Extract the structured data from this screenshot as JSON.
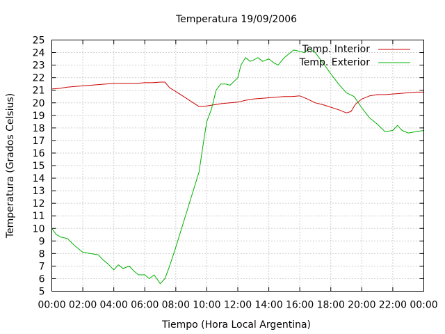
{
  "chart_data": {
    "type": "line",
    "title": "Temperatura 19/09/2006",
    "xlabel": "Tiempo (Hora Local Argentina)",
    "ylabel": "Temperatura (Grados Celsius)",
    "xlim": [
      0,
      24
    ],
    "ylim": [
      5,
      25
    ],
    "x_ticks": [
      {
        "value": 0,
        "label": "00:00"
      },
      {
        "value": 2,
        "label": "02:00"
      },
      {
        "value": 4,
        "label": "04:00"
      },
      {
        "value": 6,
        "label": "06:00"
      },
      {
        "value": 8,
        "label": "08:00"
      },
      {
        "value": 10,
        "label": "10:00"
      },
      {
        "value": 12,
        "label": "12:00"
      },
      {
        "value": 14,
        "label": "14:00"
      },
      {
        "value": 16,
        "label": "16:00"
      },
      {
        "value": 18,
        "label": "18:00"
      },
      {
        "value": 20,
        "label": "20:00"
      },
      {
        "value": 22,
        "label": "22:00"
      },
      {
        "value": 24,
        "label": "00:00"
      }
    ],
    "y_ticks": [
      5,
      6,
      7,
      8,
      9,
      10,
      11,
      12,
      13,
      14,
      15,
      16,
      17,
      18,
      19,
      20,
      21,
      22,
      23,
      24,
      25
    ],
    "grid": true,
    "legend_position": "top-right",
    "series": [
      {
        "name": "Temp. Interior",
        "color": "#cc0000",
        "x": [
          0.0,
          0.5,
          1.0,
          1.5,
          2.0,
          2.5,
          3.0,
          3.5,
          4.0,
          4.5,
          5.0,
          5.5,
          6.0,
          6.5,
          7.0,
          7.3,
          7.6,
          8.0,
          8.5,
          9.0,
          9.5,
          10.0,
          10.5,
          11.0,
          11.5,
          12.0,
          12.5,
          13.0,
          13.5,
          14.0,
          14.5,
          15.0,
          15.5,
          16.0,
          16.5,
          17.0,
          17.5,
          18.0,
          18.5,
          19.0,
          19.3,
          19.6,
          20.0,
          20.5,
          21.0,
          21.5,
          22.0,
          22.5,
          23.0,
          23.5,
          24.0
        ],
        "y": [
          21.1,
          21.15,
          21.25,
          21.3,
          21.35,
          21.4,
          21.45,
          21.5,
          21.55,
          21.55,
          21.55,
          21.55,
          21.6,
          21.6,
          21.65,
          21.65,
          21.2,
          20.9,
          20.5,
          20.1,
          19.7,
          19.75,
          19.85,
          19.95,
          20.0,
          20.05,
          20.2,
          20.3,
          20.35,
          20.4,
          20.45,
          20.5,
          20.5,
          20.55,
          20.3,
          20.0,
          19.85,
          19.65,
          19.45,
          19.2,
          19.3,
          19.9,
          20.3,
          20.55,
          20.65,
          20.65,
          20.7,
          20.75,
          20.8,
          20.85,
          20.85
        ]
      },
      {
        "name": "Temp. Exterior",
        "color": "#00b000",
        "x": [
          0.0,
          0.3,
          0.6,
          1.0,
          1.5,
          2.0,
          2.5,
          3.0,
          3.3,
          3.6,
          4.0,
          4.3,
          4.6,
          5.0,
          5.3,
          5.6,
          6.0,
          6.3,
          6.6,
          7.0,
          7.3,
          7.6,
          8.0,
          8.5,
          9.0,
          9.5,
          9.8,
          10.0,
          10.3,
          10.6,
          10.9,
          11.2,
          11.5,
          12.0,
          12.2,
          12.5,
          12.8,
          13.0,
          13.3,
          13.6,
          14.0,
          14.3,
          14.6,
          15.0,
          15.3,
          15.6,
          16.0,
          16.3,
          16.6,
          17.0,
          17.3,
          17.6,
          18.0,
          18.5,
          19.0,
          19.5,
          20.0,
          20.5,
          21.0,
          21.5,
          22.0,
          22.3,
          22.6,
          23.0,
          23.5,
          24.0
        ],
        "y": [
          10.0,
          9.5,
          9.3,
          9.2,
          8.6,
          8.1,
          8.0,
          7.9,
          7.5,
          7.2,
          6.7,
          7.1,
          6.8,
          7.0,
          6.6,
          6.3,
          6.3,
          6.0,
          6.3,
          5.6,
          6.0,
          7.0,
          8.5,
          10.5,
          12.5,
          14.5,
          17.0,
          18.5,
          19.5,
          21.0,
          21.5,
          21.5,
          21.4,
          22.0,
          23.0,
          23.6,
          23.3,
          23.4,
          23.6,
          23.3,
          23.5,
          23.2,
          23.0,
          23.6,
          23.9,
          24.2,
          24.1,
          24.0,
          24.3,
          24.0,
          23.5,
          23.0,
          22.3,
          21.5,
          20.8,
          20.5,
          19.6,
          18.8,
          18.3,
          17.7,
          17.8,
          18.2,
          17.8,
          17.6,
          17.7,
          17.8
        ]
      }
    ]
  }
}
